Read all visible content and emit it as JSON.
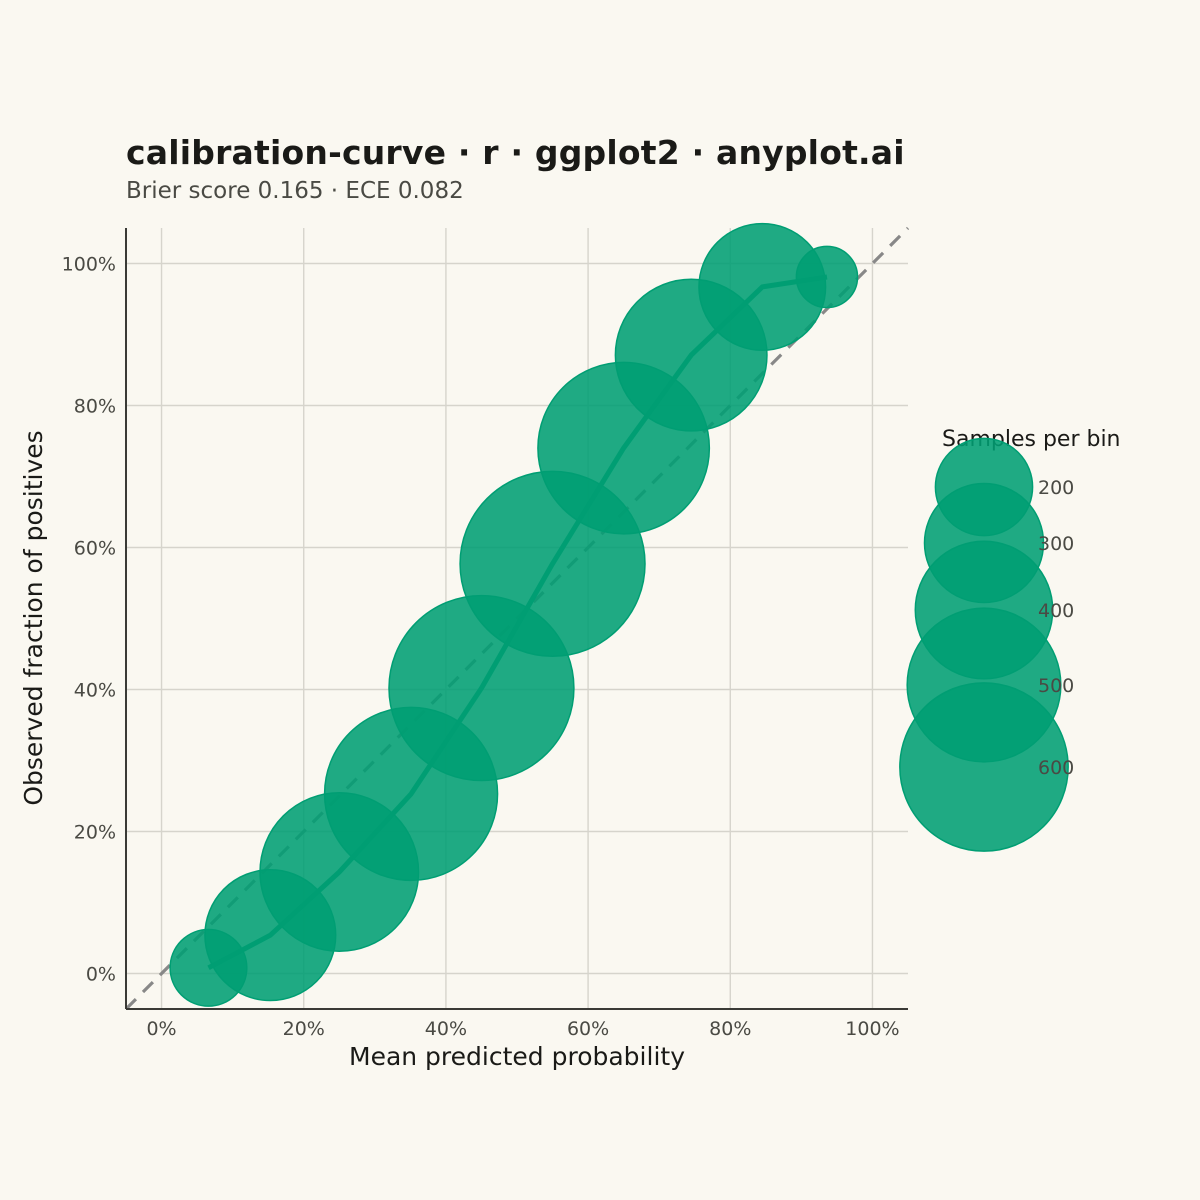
{
  "colors": {
    "background": "#FAF8F1",
    "accent": "#009E73",
    "point_fill": "#009E73",
    "reference_line": "#888888",
    "grid": "#D6D4CC",
    "axis": "#3A3A36",
    "title": "#1A1A17",
    "subtitle": "#4A4A44"
  },
  "chart_data": {
    "type": "scatter",
    "title": "calibration-curve · r · ggplot2 · anyplot.ai",
    "subtitle": "Brier score 0.165 · ECE 0.082",
    "xlabel": "Mean predicted probability",
    "ylabel": "Observed fraction of positives",
    "xlim": [
      -0.05,
      1.05
    ],
    "ylim": [
      -0.05,
      1.05
    ],
    "x_ticks": [
      0,
      0.2,
      0.4,
      0.6,
      0.8,
      1.0
    ],
    "x_tick_labels": [
      "0%",
      "20%",
      "40%",
      "60%",
      "80%",
      "100%"
    ],
    "y_ticks": [
      0,
      0.2,
      0.4,
      0.6,
      0.8,
      1.0
    ],
    "y_tick_labels": [
      "0%",
      "20%",
      "40%",
      "60%",
      "80%",
      "100%"
    ],
    "grid": true,
    "reference_line": {
      "style": "dashed",
      "from": [
        -0.05,
        -0.05
      ],
      "to": [
        1.05,
        1.05
      ]
    },
    "series": [
      {
        "points": [
          {
            "x": 0.066,
            "y": 0.008,
            "n": 110
          },
          {
            "x": 0.153,
            "y": 0.054,
            "n": 320
          },
          {
            "x": 0.25,
            "y": 0.143,
            "n": 470
          },
          {
            "x": 0.351,
            "y": 0.253,
            "n": 560
          },
          {
            "x": 0.45,
            "y": 0.402,
            "n": 640
          },
          {
            "x": 0.55,
            "y": 0.577,
            "n": 640
          },
          {
            "x": 0.65,
            "y": 0.74,
            "n": 550
          },
          {
            "x": 0.745,
            "y": 0.871,
            "n": 430
          },
          {
            "x": 0.845,
            "y": 0.967,
            "n": 300
          },
          {
            "x": 0.936,
            "y": 0.981,
            "n": 70
          }
        ]
      }
    ],
    "legend": {
      "title": "Samples per bin",
      "placement": "right",
      "entries": [
        {
          "label": "200",
          "n": 200
        },
        {
          "label": "300",
          "n": 300
        },
        {
          "label": "400",
          "n": 400
        },
        {
          "label": "500",
          "n": 500
        },
        {
          "label": "600",
          "n": 600
        }
      ]
    }
  }
}
